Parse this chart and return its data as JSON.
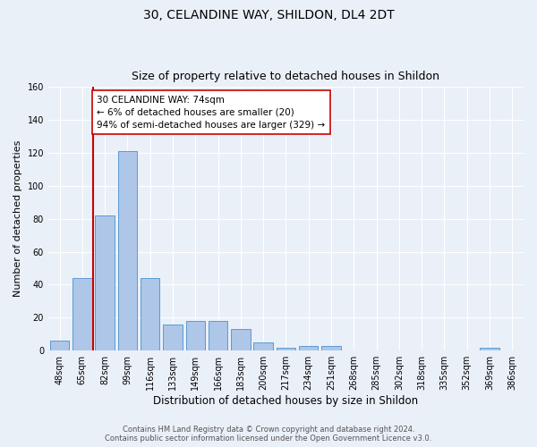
{
  "title": "30, CELANDINE WAY, SHILDON, DL4 2DT",
  "subtitle": "Size of property relative to detached houses in Shildon",
  "xlabel": "Distribution of detached houses by size in Shildon",
  "ylabel": "Number of detached properties",
  "categories": [
    "48sqm",
    "65sqm",
    "82sqm",
    "99sqm",
    "116sqm",
    "133sqm",
    "149sqm",
    "166sqm",
    "183sqm",
    "200sqm",
    "217sqm",
    "234sqm",
    "251sqm",
    "268sqm",
    "285sqm",
    "302sqm",
    "318sqm",
    "335sqm",
    "352sqm",
    "369sqm",
    "386sqm"
  ],
  "values": [
    6,
    44,
    82,
    121,
    44,
    16,
    18,
    18,
    13,
    5,
    2,
    3,
    3,
    0,
    0,
    0,
    0,
    0,
    0,
    2,
    0
  ],
  "bar_color": "#aec6e8",
  "bar_edge_color": "#5a9bd4",
  "ylim": [
    0,
    160
  ],
  "yticks": [
    0,
    20,
    40,
    60,
    80,
    100,
    120,
    140,
    160
  ],
  "vline_x_pos": 1.5,
  "vline_color": "#cc0000",
  "annotation_text": "30 CELANDINE WAY: 74sqm\n← 6% of detached houses are smaller (20)\n94% of semi-detached houses are larger (329) →",
  "annotation_box_color": "#ffffff",
  "annotation_box_edge": "#cc0000",
  "footer_line1": "Contains HM Land Registry data © Crown copyright and database right 2024.",
  "footer_line2": "Contains public sector information licensed under the Open Government Licence v3.0.",
  "bg_color": "#eaf0f8",
  "grid_color": "#ffffff",
  "title_fontsize": 10,
  "subtitle_fontsize": 9,
  "ylabel_fontsize": 8,
  "xlabel_fontsize": 8.5,
  "tick_fontsize": 7,
  "annotation_fontsize": 7.5
}
